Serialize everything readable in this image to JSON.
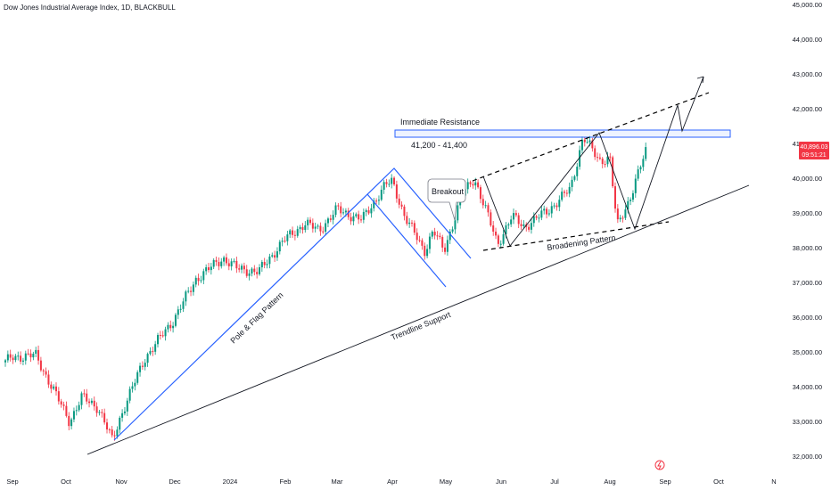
{
  "header": {
    "title": "Dow Jones Industrial Average Index, 1D, BLACKBULL"
  },
  "price_tag": {
    "price": "40,896.03",
    "timer": "09:51:21"
  },
  "colors": {
    "up": "#089981",
    "down": "#f23645",
    "pattern": "#2962ff",
    "tag": "#f23645"
  },
  "chart_data": {
    "type": "candlestick",
    "title": "Dow Jones Industrial Average Index, 1D, BLACKBULL",
    "xlabel": "",
    "ylabel": "",
    "ylim": [
      31800,
      45000
    ],
    "y_ticks": [
      "32,000.00",
      "33,000.00",
      "34,000.00",
      "35,000.00",
      "36,000.00",
      "37,000.00",
      "38,000.00",
      "39,000.00",
      "40,000.00",
      "41,000.00",
      "42,000.00",
      "43,000.00",
      "44,000.00",
      "45,000.00"
    ],
    "x_ticks": [
      "Sep",
      "Oct",
      "Nov",
      "Dec",
      "2024",
      "Feb",
      "Mar",
      "Apr",
      "May",
      "Jun",
      "Jul",
      "Aug",
      "Sep",
      "Oct",
      "N"
    ],
    "close_path": [
      [
        "2023-08-28",
        34700
      ],
      [
        "2023-09-01",
        34850
      ],
      [
        "2023-09-14",
        34900
      ],
      [
        "2023-09-22",
        34100
      ],
      [
        "2023-10-03",
        33000
      ],
      [
        "2023-10-10",
        33700
      ],
      [
        "2023-10-19",
        33400
      ],
      [
        "2023-10-27",
        32450
      ],
      [
        "2023-11-01",
        33200
      ],
      [
        "2023-11-14",
        34800
      ],
      [
        "2023-11-30",
        35900
      ],
      [
        "2023-12-13",
        37100
      ],
      [
        "2023-12-28",
        37700
      ],
      [
        "2024-01-05",
        37400
      ],
      [
        "2024-01-17",
        37300
      ],
      [
        "2024-01-31",
        38200
      ],
      [
        "2024-02-12",
        38700
      ],
      [
        "2024-02-20",
        38500
      ],
      [
        "2024-03-01",
        39100
      ],
      [
        "2024-03-15",
        38800
      ],
      [
        "2024-03-28",
        39800
      ],
      [
        "2024-04-01",
        39900
      ],
      [
        "2024-04-08",
        38900
      ],
      [
        "2024-04-19",
        37900
      ],
      [
        "2024-04-24",
        38500
      ],
      [
        "2024-04-30",
        37900
      ],
      [
        "2024-05-10",
        39500
      ],
      [
        "2024-05-17",
        40000
      ],
      [
        "2024-05-24",
        39000
      ],
      [
        "2024-05-30",
        38100
      ],
      [
        "2024-06-07",
        38900
      ],
      [
        "2024-06-14",
        38600
      ],
      [
        "2024-06-28",
        39100
      ],
      [
        "2024-07-10",
        39700
      ],
      [
        "2024-07-17",
        41200
      ],
      [
        "2024-07-26",
        40500
      ],
      [
        "2024-08-01",
        40600
      ],
      [
        "2024-08-05",
        38600
      ],
      [
        "2024-08-12",
        39400
      ],
      [
        "2024-08-22",
        40900
      ]
    ],
    "annotations": [
      {
        "label": "Immediate Resistance",
        "detail": "41,200 - 41,400",
        "kind": "zone",
        "y_range": [
          41200,
          41400
        ],
        "x_range": [
          "2024-03-14",
          "2024-09-19"
        ]
      },
      {
        "label": "Pole & Flag Pattern",
        "kind": "pattern"
      },
      {
        "label": "Breakout",
        "kind": "callout"
      },
      {
        "label": "Broadening Pattern",
        "kind": "pattern"
      },
      {
        "label": "Trendline Support",
        "kind": "trendline"
      }
    ]
  }
}
